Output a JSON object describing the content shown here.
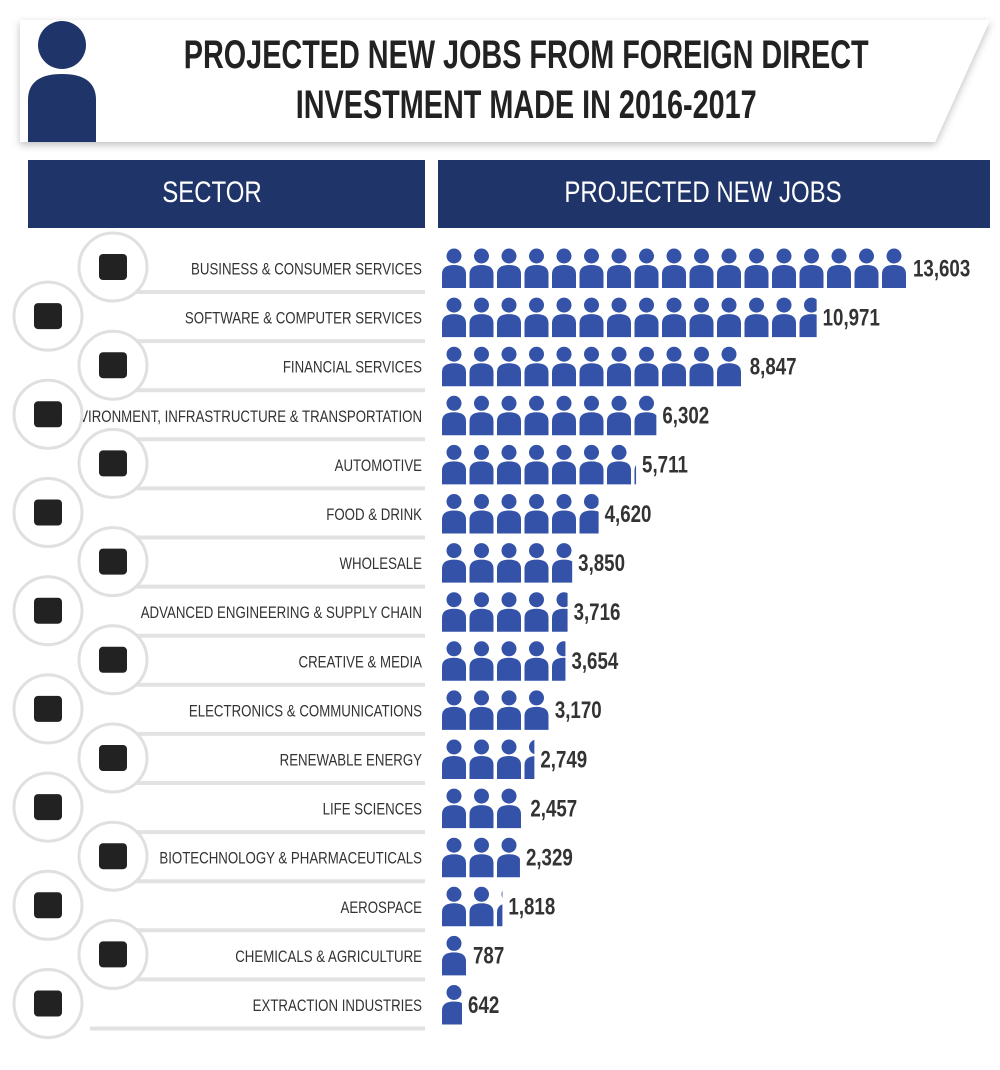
{
  "chart_data": {
    "type": "pictograph",
    "title": "PROJECTED NEW JOBS FROM FOREIGN DIRECT INVESTMENT MADE IN 2016-2017",
    "category_header": "SECTOR",
    "value_header": "PROJECTED NEW JOBS",
    "color": "#3453a8",
    "header_color": "#1f3469",
    "categories": [
      "BUSINESS & CONSUMER SERVICES",
      "SOFTWARE & COMPUTER SERVICES",
      "FINANCIAL SERVICES",
      "ENVIRONMENT, INFRASTRUCTURE & TRANSPORTATION",
      "AUTOMOTIVE",
      "FOOD & DRINK",
      "WHOLESALE",
      "ADVANCED ENGINEERING & SUPPLY CHAIN",
      "CREATIVE & MEDIA",
      "ELECTRONICS & COMMUNICATIONS",
      "RENEWABLE ENERGY",
      "LIFE SCIENCES",
      "BIOTECHNOLOGY & PHARMACEUTICALS",
      "AEROSPACE",
      "CHEMICALS & AGRICULTURE",
      "EXTRACTION INDUSTRIES"
    ],
    "values": [
      13603,
      10971,
      8847,
      6302,
      5711,
      4620,
      3850,
      3716,
      3654,
      3170,
      2749,
      2457,
      2329,
      1818,
      787,
      642
    ],
    "value_labels": [
      "13,603",
      "10,971",
      "8,847",
      "6,302",
      "5,711",
      "4,620",
      "3,850",
      "3,716",
      "3,654",
      "3,170",
      "2,749",
      "2,457",
      "2,329",
      "1,818",
      "787",
      "642"
    ]
  }
}
